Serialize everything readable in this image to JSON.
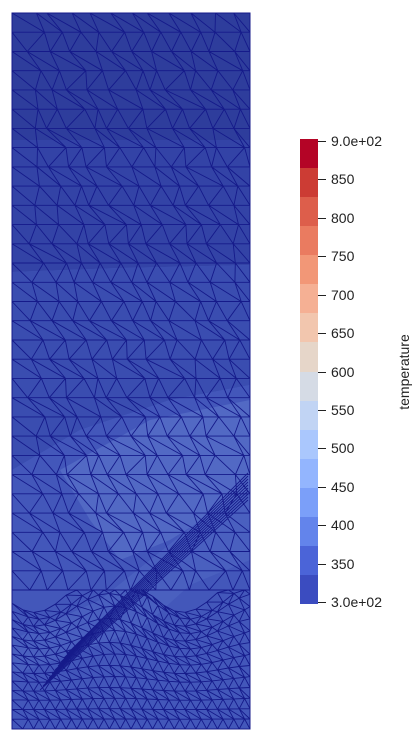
{
  "colorbar": {
    "title": "temperature",
    "labels": [
      "9.0e+02",
      "850",
      "800",
      "750",
      "700",
      "650",
      "600",
      "550",
      "500",
      "450",
      "400",
      "350",
      "3.0e+02"
    ],
    "colors": [
      "#b40426",
      "#cc3c34",
      "#dd5e4b",
      "#ea7b60",
      "#f29777",
      "#f5b094",
      "#f2c6ae",
      "#e6d6c9",
      "#d5dbe5",
      "#c1d4f4",
      "#aac7fd",
      "#93b5fe",
      "#7b9ff9",
      "#6384eb",
      "#4b64d8",
      "#3b4cc0"
    ]
  },
  "mesh": {
    "line_color": "#151a8a",
    "fill_colors": [
      "#2e3d9c",
      "#3343a6",
      "#3a4db0",
      "#4357ba",
      "#4a60bf",
      "#5269c4",
      "#5a72c9"
    ]
  }
}
